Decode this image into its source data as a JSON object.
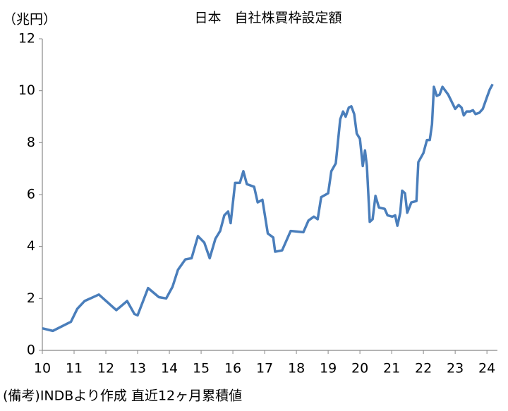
{
  "chart_data": {
    "type": "line",
    "title": "日本　自社株買枠設定額",
    "y_label": "（兆円）",
    "note": "(備考)INDBより作成 直近12ヶ月累積値",
    "x": [
      10.0,
      10.33,
      10.9,
      11.1,
      11.33,
      11.78,
      12.33,
      12.67,
      12.9,
      13.0,
      13.33,
      13.67,
      13.9,
      14.1,
      14.27,
      14.5,
      14.7,
      14.9,
      15.1,
      15.27,
      15.45,
      15.6,
      15.73,
      15.85,
      15.93,
      16.07,
      16.22,
      16.33,
      16.44,
      16.67,
      16.78,
      16.93,
      17.1,
      17.27,
      17.33,
      17.55,
      17.82,
      18.22,
      18.38,
      18.55,
      18.67,
      18.78,
      19.0,
      19.1,
      19.24,
      19.38,
      19.47,
      19.55,
      19.65,
      19.73,
      19.82,
      19.9,
      20.0,
      20.09,
      20.16,
      20.22,
      20.31,
      20.4,
      20.49,
      20.6,
      20.78,
      20.87,
      21.02,
      21.11,
      21.18,
      21.27,
      21.33,
      21.42,
      21.49,
      21.62,
      21.78,
      21.84,
      22.0,
      22.11,
      22.2,
      22.27,
      22.33,
      22.42,
      22.51,
      22.6,
      22.78,
      23.0,
      23.11,
      23.2,
      23.27,
      23.36,
      23.47,
      23.56,
      23.64,
      23.76,
      23.87,
      24.0,
      24.09,
      24.18
    ],
    "series": [
      {
        "name": "自社株買枠設定額",
        "color": "#4a7ebb",
        "values": [
          0.85,
          0.75,
          1.1,
          1.6,
          1.9,
          2.15,
          1.55,
          1.9,
          1.4,
          1.35,
          2.4,
          2.05,
          2.0,
          2.45,
          3.1,
          3.5,
          3.55,
          4.4,
          4.15,
          3.55,
          4.3,
          4.6,
          5.2,
          5.35,
          4.9,
          6.45,
          6.45,
          6.9,
          6.4,
          6.3,
          5.7,
          5.8,
          4.5,
          4.35,
          3.8,
          3.85,
          4.6,
          4.55,
          5.0,
          5.15,
          5.05,
          5.9,
          6.05,
          6.9,
          7.2,
          8.9,
          9.2,
          9.0,
          9.35,
          9.4,
          9.1,
          8.35,
          8.15,
          7.1,
          7.7,
          7.1,
          4.95,
          5.05,
          5.95,
          5.5,
          5.45,
          5.2,
          5.15,
          5.2,
          4.8,
          5.3,
          6.15,
          6.05,
          5.3,
          5.7,
          5.75,
          7.25,
          7.6,
          8.1,
          8.1,
          8.7,
          10.15,
          9.8,
          9.85,
          10.15,
          9.85,
          9.3,
          9.45,
          9.35,
          9.05,
          9.2,
          9.2,
          9.25,
          9.1,
          9.15,
          9.3,
          9.75,
          10.05,
          10.25
        ]
      }
    ],
    "xlim": [
      10,
      24.33
    ],
    "xticks": [
      10,
      11,
      12,
      13,
      14,
      15,
      16,
      17,
      18,
      19,
      20,
      21,
      22,
      23,
      24
    ],
    "ylim": [
      0,
      12
    ],
    "yticks": [
      0,
      2,
      4,
      6,
      8,
      10,
      12
    ],
    "grid": false
  }
}
